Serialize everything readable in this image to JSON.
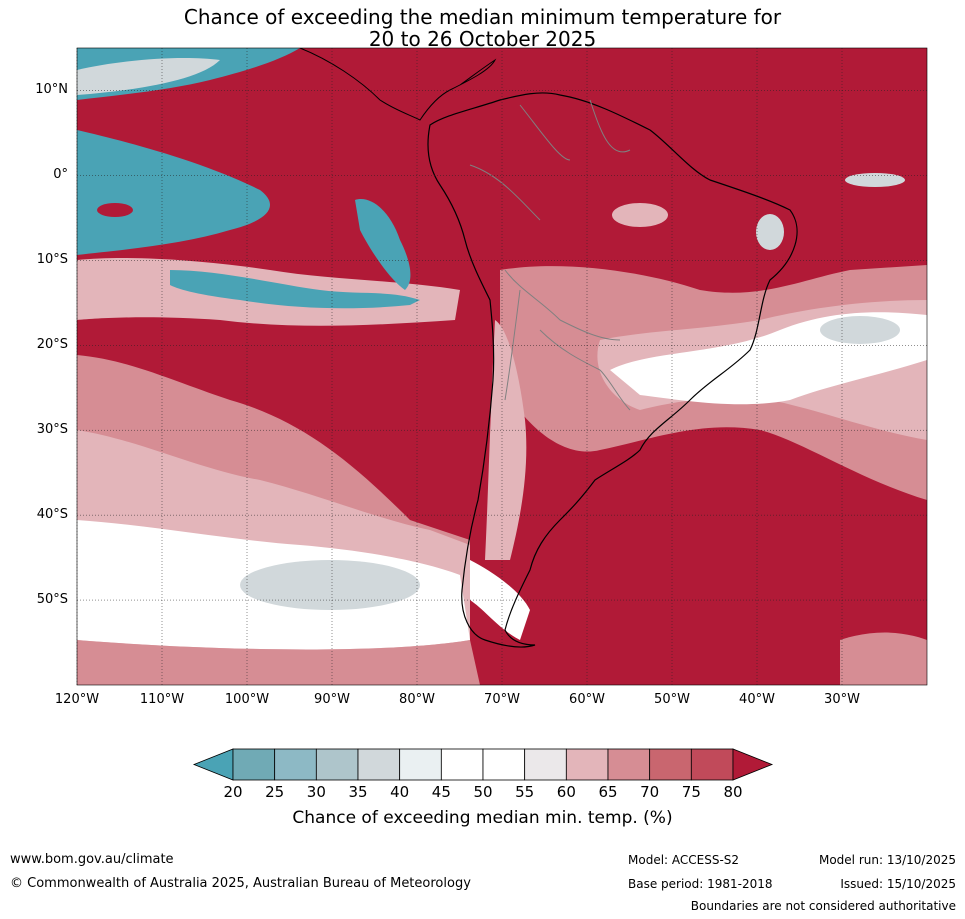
{
  "title": {
    "line1": "Chance of exceeding the median minimum temperature for",
    "line2": "20 to 26 October 2025"
  },
  "map": {
    "lat_labels": [
      "10°N",
      "0°",
      "10°S",
      "20°S",
      "30°S",
      "40°S",
      "50°S"
    ],
    "lon_labels": [
      "120°W",
      "110°W",
      "100°W",
      "90°W",
      "80°W",
      "70°W",
      "60°W",
      "50°W",
      "40°W",
      "30°W"
    ],
    "lat_range": [
      -60,
      15
    ],
    "lon_range": [
      -120,
      -20
    ],
    "colors": {
      "very_high": "#b11a37",
      "high": "#c14a5a",
      "mid_high": "#d68d94",
      "low_high": "#e3b5ba",
      "neutral": "#ffffff",
      "low": "#d1d8db",
      "very_low": "#4aa3b5",
      "land_outline": "#000000",
      "border": "#808080"
    }
  },
  "colorbar": {
    "ticks": [
      "20",
      "25",
      "30",
      "35",
      "40",
      "45",
      "50",
      "55",
      "60",
      "65",
      "70",
      "75",
      "80"
    ],
    "colors": [
      "#4aa3b5",
      "#70aab5",
      "#8db9c5",
      "#aec5cb",
      "#d1d8db",
      "#eaf0f2",
      "#ffffff",
      "#ffffff",
      "#ebe8ea",
      "#e3b5ba",
      "#d68d94",
      "#c9666f",
      "#c14a5a",
      "#b11a37"
    ],
    "label": "Chance of exceeding median min. temp. (%)"
  },
  "footer": {
    "website": "www.bom.gov.au/climate",
    "copyright": "© Commonwealth of Australia 2025, Australian Bureau of Meteorology",
    "model": "Model: ACCESS-S2",
    "model_run": "Model run: 13/10/2025",
    "base_period": "Base period: 1981-2018",
    "issued": "Issued: 15/10/2025",
    "disclaimer": "Boundaries are not considered authoritative"
  }
}
